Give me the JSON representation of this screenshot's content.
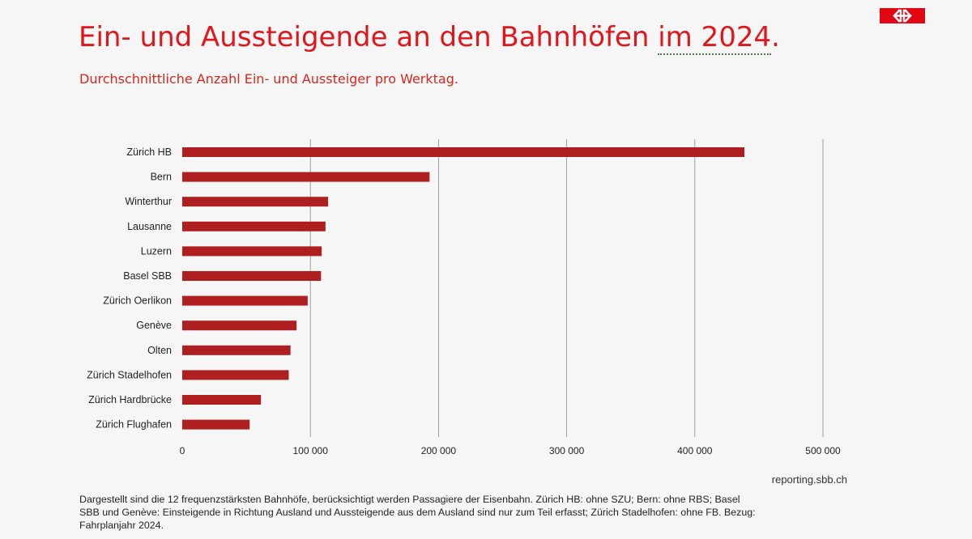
{
  "header": {
    "title": "Ein- und Aussteigende an den Bahnhöfen",
    "title_year": "im 2024",
    "title_end": ".",
    "subtitle": "Durchschnittliche Anzahl Ein- und Aussteiger pro Werktag."
  },
  "logo": {
    "icon": "sbb-arrows-icon",
    "color": "#e30613"
  },
  "colors": {
    "bar": "#b01f1f",
    "title": "#e0161b",
    "grid": "#8a8a8a"
  },
  "chart_data": {
    "type": "bar",
    "orientation": "horizontal",
    "categories": [
      "Zürich HB",
      "Bern",
      "Winterthur",
      "Lausanne",
      "Luzern",
      "Basel SBB",
      "Zürich Oerlikon",
      "Genève",
      "Olten",
      "Zürich Stadelhofen",
      "Zürich Hardbrücke",
      "Zürich Flughafen"
    ],
    "values": [
      438700,
      193000,
      113800,
      111800,
      108800,
      108300,
      97900,
      89200,
      84500,
      83100,
      61400,
      52600
    ],
    "xlim": [
      0,
      500000
    ],
    "xticks": [
      0,
      100000,
      200000,
      300000,
      400000,
      500000
    ],
    "xtick_labels": [
      "0",
      "100 000",
      "200 000",
      "300 000",
      "400 000",
      "500 000"
    ],
    "grid": "vertical",
    "legend": "none"
  },
  "footer": {
    "source": "reporting.sbb.ch",
    "note": "Dargestellt sind die 12 frequenzstärksten Bahnhöfe, berücksichtigt werden Passagiere der Eisenbahn. Zürich HB: ohne SZU; Bern: ohne RBS; Basel SBB und Genève: Einsteigende in Richtung Ausland und Aussteigende aus dem Ausland sind nur zum Teil erfasst; Zürich Stadelhofen: ohne FB. Bezug: Fahrplanjahr 2024."
  }
}
